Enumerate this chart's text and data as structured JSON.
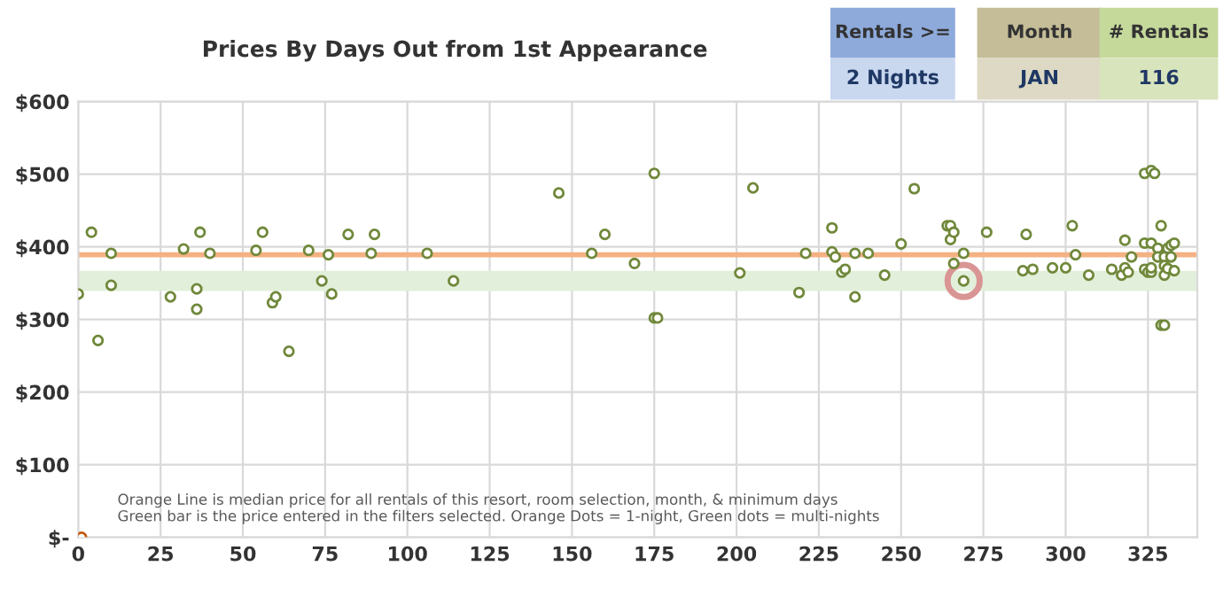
{
  "chart_data": {
    "type": "scatter",
    "title": "Prices By Days Out from 1st Appearance",
    "xlim": [
      0,
      340
    ],
    "xticks": [
      0,
      25,
      50,
      75,
      100,
      125,
      150,
      175,
      200,
      225,
      250,
      275,
      300,
      325
    ],
    "ylim": [
      0,
      600
    ],
    "yticks": [
      {
        "value": 0,
        "label": "$-"
      },
      {
        "value": 100,
        "label": "$100"
      },
      {
        "value": 200,
        "label": "$200"
      },
      {
        "value": 300,
        "label": "$300"
      },
      {
        "value": 400,
        "label": "$400"
      },
      {
        "value": 500,
        "label": "$500"
      },
      {
        "value": 600,
        "label": "$600"
      }
    ],
    "grid": true,
    "marker": "circle",
    "legend": false,
    "series": [
      {
        "color": "#70883a",
        "x": [
          0,
          4,
          6,
          10,
          10,
          28,
          32,
          36,
          36,
          37,
          40,
          54,
          56,
          59,
          60,
          64,
          70,
          74,
          76,
          77,
          82,
          89,
          90,
          106,
          114,
          146,
          156,
          160,
          169,
          175,
          175,
          176,
          201,
          205,
          219,
          221,
          229,
          229,
          230,
          232,
          233,
          236,
          236,
          240,
          245,
          250,
          254,
          264,
          265,
          265,
          266,
          266,
          269,
          269,
          276,
          287,
          288,
          290,
          296,
          300,
          302,
          303,
          307,
          314,
          317,
          318,
          318,
          319,
          320,
          324,
          324,
          324,
          325,
          326,
          326,
          327,
          326,
          326,
          329,
          328,
          328,
          329,
          330,
          330,
          330,
          330,
          331,
          331,
          332,
          332,
          333,
          333
        ],
        "values": [
          335,
          420,
          271,
          391,
          347,
          331,
          397,
          342,
          314,
          420,
          391,
          395,
          420,
          323,
          331,
          256,
          395,
          353,
          389,
          335,
          417,
          391,
          417,
          391,
          353,
          474,
          391,
          417,
          377,
          501,
          302,
          302,
          364,
          481,
          337,
          391,
          426,
          393,
          386,
          365,
          369,
          331,
          391,
          391,
          361,
          404,
          480,
          429,
          429,
          410,
          420,
          377,
          391,
          353,
          420,
          367,
          417,
          369,
          371,
          371,
          429,
          389,
          361,
          369,
          361,
          409,
          371,
          365,
          386,
          501,
          405,
          369,
          365,
          365,
          505,
          501,
          405,
          371,
          429,
          398,
          386,
          292,
          292,
          386,
          374,
          361,
          398,
          370,
          386,
          402,
          405,
          367
        ]
      },
      {
        "color": "#c55a11",
        "x": [
          1
        ],
        "values": [
          0
        ]
      },
      {
        "color": "#d99594",
        "x": [
          269
        ],
        "values": [
          353
        ],
        "marker": "circle"
      }
    ],
    "ref_lines": [
      {
        "axis": "y",
        "value": 389,
        "color": "#f4b183"
      }
    ],
    "bands": [
      {
        "axis": "y",
        "from": 339,
        "to": 367,
        "color": "#e2efda"
      }
    ],
    "annotations": [
      "Orange Line is median price for all rentals of this resort, room selection, month, & minimum days\nGreen bar is the price entered in the filters selected. Orange Dots = 1-night, Green dots = multi-nights",
      "Rentals >=",
      "2 Nights",
      "Month",
      "JAN",
      "# Rentals",
      "116"
    ]
  }
}
